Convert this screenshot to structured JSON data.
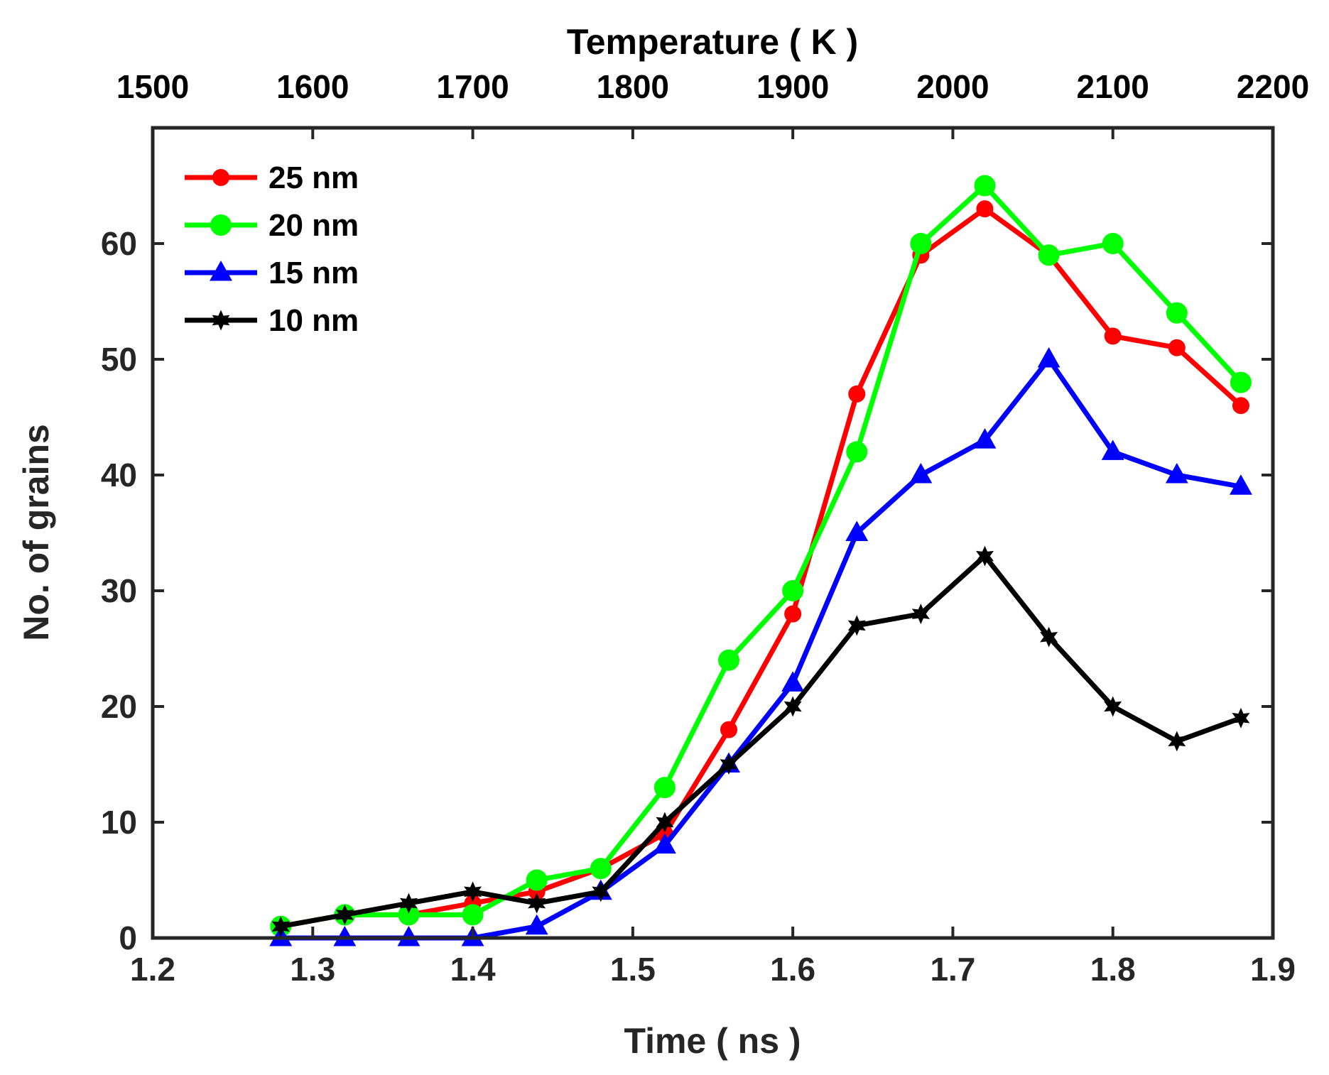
{
  "chart_data": {
    "type": "line",
    "title": "",
    "xlabel": "Time ( ns )",
    "ylabel": "No. of grains",
    "top_xlabel": "Temperature ( K )",
    "xlim": [
      1.2,
      1.9
    ],
    "ylim": [
      0,
      70
    ],
    "x_ticks": [
      1.2,
      1.3,
      1.4,
      1.5,
      1.6,
      1.7,
      1.8,
      1.9
    ],
    "x_tick_labels": [
      "1.2",
      "1.3",
      "1.4",
      "1.5",
      "1.6",
      "1.7",
      "1.8",
      "1.9"
    ],
    "y_ticks": [
      0,
      10,
      20,
      30,
      40,
      50,
      60
    ],
    "y_tick_labels": [
      "0",
      "10",
      "20",
      "30",
      "40",
      "50",
      "60"
    ],
    "top_xlim": [
      1500,
      2200
    ],
    "top_ticks": [
      1500,
      1600,
      1700,
      1800,
      1900,
      2000,
      2100,
      2200
    ],
    "top_tick_labels": [
      "1500",
      "1600",
      "1700",
      "1800",
      "1900",
      "2000",
      "2100",
      "2200"
    ],
    "grid": false,
    "legend_position": "top-left",
    "x": [
      1.28,
      1.32,
      1.36,
      1.4,
      1.44,
      1.48,
      1.52,
      1.56,
      1.6,
      1.64,
      1.68,
      1.72,
      1.76,
      1.8,
      1.84,
      1.88
    ],
    "series": [
      {
        "name": "25 nm",
        "color": "#ff0000",
        "marker": "circle-small",
        "values": [
          1,
          2,
          2,
          3,
          4,
          6,
          9,
          18,
          28,
          47,
          59,
          63,
          59,
          52,
          51,
          46
        ]
      },
      {
        "name": "20 nm",
        "color": "#00ff00",
        "marker": "circle-large",
        "values": [
          1,
          2,
          2,
          2,
          5,
          6,
          13,
          24,
          30,
          42,
          60,
          65,
          59,
          60,
          54,
          48
        ]
      },
      {
        "name": "15 nm",
        "color": "#0000ff",
        "marker": "triangle",
        "values": [
          0,
          0,
          0,
          0,
          1,
          4,
          8,
          15,
          22,
          35,
          40,
          43,
          50,
          42,
          40,
          39
        ]
      },
      {
        "name": "10 nm",
        "color": "#000000",
        "marker": "hexagram",
        "values": [
          1,
          2,
          3,
          4,
          3,
          4,
          10,
          15,
          20,
          27,
          28,
          33,
          26,
          20,
          17,
          19
        ]
      }
    ]
  }
}
